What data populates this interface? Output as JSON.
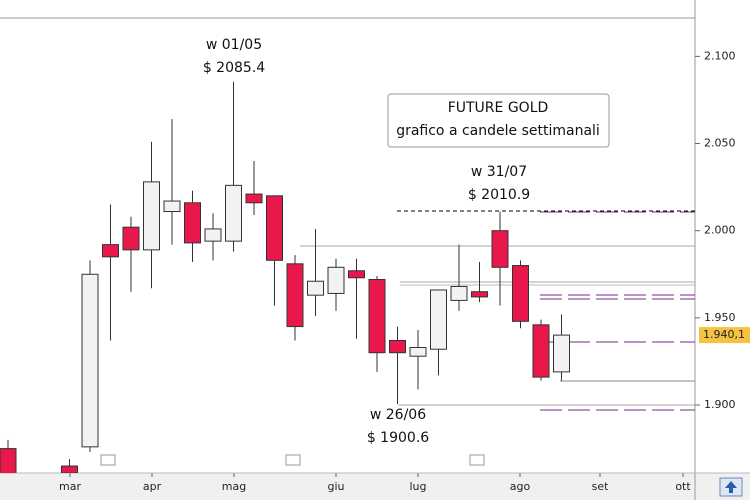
{
  "chart_data": {
    "type": "candlestick",
    "title": "FUTURE GOLD",
    "subtitle": "grafico a candele settimanali",
    "categories": [
      "mar",
      "apr",
      "mag",
      "giu",
      "lug",
      "ago",
      "set",
      "ott"
    ],
    "open": [
      1875,
      1865,
      1876,
      1992,
      2002,
      1989,
      2011,
      2016,
      1994,
      1994,
      2021,
      2020,
      1981,
      1963,
      1964,
      1977,
      1972,
      1937,
      1928,
      1932,
      1960,
      1965,
      2000,
      1980,
      1946,
      1919
    ],
    "high": [
      1880,
      1869,
      1983,
      2015,
      2008,
      2051,
      2064,
      2023,
      2010,
      2085.4,
      2040,
      2020,
      1986,
      2001,
      1984,
      1984,
      1974,
      1945,
      1943,
      1966,
      1992,
      1982,
      2010.9,
      1983,
      1949,
      1952
    ],
    "low": [
      1855,
      1861,
      1873,
      1937,
      1965,
      1967,
      1992,
      1982,
      1983,
      1988,
      2009,
      1957,
      1937,
      1951,
      1954,
      1938,
      1919,
      1900.6,
      1909,
      1917,
      1954,
      1959,
      1957,
      1944,
      1914,
      1914
    ],
    "close": [
      1858,
      1861,
      1975,
      1985,
      1989,
      2028,
      2017,
      1993,
      2001,
      2026,
      2016,
      1983,
      1945,
      1971,
      1979,
      1973,
      1930,
      1930,
      1933,
      1966,
      1968,
      1962,
      1979,
      1948,
      1916,
      1940.1
    ],
    "up_color": "#f2f2f2",
    "down_color": "#e8184a",
    "ylim": [
      1861,
      2122
    ],
    "yticks": [
      {
        "value": 1900,
        "label": "1.900"
      },
      {
        "value": 1950,
        "label": "1.950"
      },
      {
        "value": 2000,
        "label": "2.000"
      },
      {
        "value": 2050,
        "label": "2.050"
      },
      {
        "value": 2100,
        "label": "2.100"
      }
    ],
    "last_price": {
      "value": 1940.1,
      "label": "1.940,1"
    },
    "annotations": [
      {
        "week": "w 01/05",
        "price": "$ 2085.4"
      },
      {
        "week": "w 31/07",
        "price": "$ 2010.9"
      },
      {
        "week": "w 26/06",
        "price": "$ 1900.6"
      }
    ]
  }
}
